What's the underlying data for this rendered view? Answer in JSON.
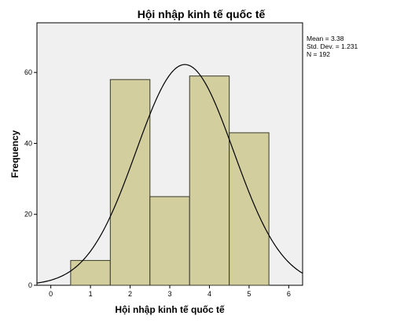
{
  "chart_data": {
    "type": "bar",
    "title": "Hội nhập kinh tế quốc tế",
    "xlabel": "Hội nhập kinh tế quốc tế",
    "ylabel": "Frequency",
    "categories": [
      "1",
      "2",
      "3",
      "4",
      "5"
    ],
    "x": [
      1,
      2,
      3,
      4,
      5
    ],
    "values": [
      7,
      58,
      25,
      59,
      43
    ],
    "xlim": [
      -0.35,
      6.35
    ],
    "ylim": [
      0,
      74
    ],
    "xticks": [
      "0",
      "1",
      "2",
      "3",
      "4",
      "5",
      "6"
    ],
    "yticks": [
      "0",
      "20",
      "40",
      "60"
    ],
    "grid": false,
    "normal_curve": {
      "mean": 3.38,
      "std": 1.231,
      "n": 192,
      "bin_width": 1
    },
    "stats": {
      "mean": "Mean = 3.38",
      "std": "Std. Dev. = 1.231",
      "n": "N = 192"
    },
    "colors": {
      "plot_background": "#f0f0f0",
      "bar_fill": "#d3ce9e",
      "bar_stroke": "#3a3a2a",
      "curve": "#000000"
    }
  }
}
